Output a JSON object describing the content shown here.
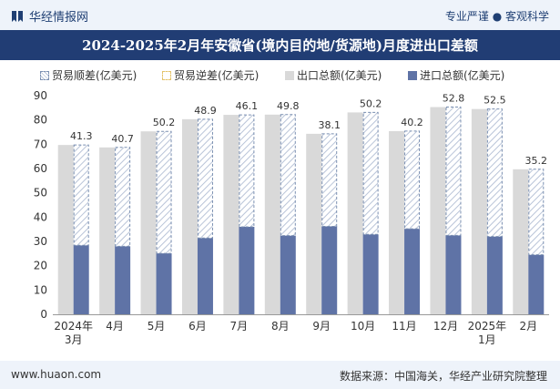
{
  "header": {
    "brand": "华经情报网",
    "tagline": "专业严谨 ● 客观科学",
    "brand_icon": "bookmark-logo-icon"
  },
  "chart_data": {
    "type": "bar",
    "title": "2024-2025年2月年安徽省(境内目的地/货源地)月度进出口差额",
    "categories": [
      "2024年3月",
      "4月",
      "5月",
      "6月",
      "7月",
      "8月",
      "9月",
      "10月",
      "11月",
      "12月",
      "2025年1月",
      "2月"
    ],
    "series": [
      {
        "name": "出口总额(亿美元)",
        "values": [
          69.7,
          68.7,
          75.3,
          80.3,
          82.1,
          82.2,
          74.3,
          83.1,
          75.4,
          85.3,
          84.5,
          59.7
        ]
      },
      {
        "name": "进口总额(亿美元)",
        "values": [
          28.4,
          28.0,
          25.1,
          31.4,
          36.0,
          32.4,
          36.2,
          32.9,
          35.2,
          32.5,
          32.0,
          24.5
        ]
      },
      {
        "name": "贸易顺差(亿美元)",
        "values": [
          41.3,
          40.7,
          50.2,
          48.9,
          46.1,
          49.8,
          38.1,
          50.2,
          40.2,
          52.8,
          52.5,
          35.2
        ]
      },
      {
        "name": "贸易逆差(亿美元)",
        "values": [
          0,
          0,
          0,
          0,
          0,
          0,
          0,
          0,
          0,
          0,
          0,
          0
        ]
      }
    ],
    "data_labels": [
      "41.3",
      "40.7",
      "50.2",
      "48.9",
      "46.1",
      "49.8",
      "38.1",
      "50.2",
      "40.2",
      "52.8",
      "52.5",
      "35.2"
    ],
    "ylim": [
      0,
      90
    ],
    "yticks": [
      0,
      10,
      20,
      30,
      40,
      50,
      60,
      70,
      80,
      90
    ],
    "xlabel": "",
    "ylabel": "",
    "legend": [
      "贸易顺差(亿美元)",
      "贸易逆差(亿美元)",
      "出口总额(亿美元)",
      "进口总额(亿美元)"
    ],
    "colors": {
      "export": "#d9d9d9",
      "import": "#5f73a6",
      "surplus_stroke": "#7a8fb1",
      "surplus_hatch": "#b9c4d8",
      "deficit_stroke": "#e4c36a",
      "axis": "#999999"
    }
  },
  "footer": {
    "website": "www.huaon.com",
    "source": "数据来源：中国海关，华经产业研究院整理"
  }
}
